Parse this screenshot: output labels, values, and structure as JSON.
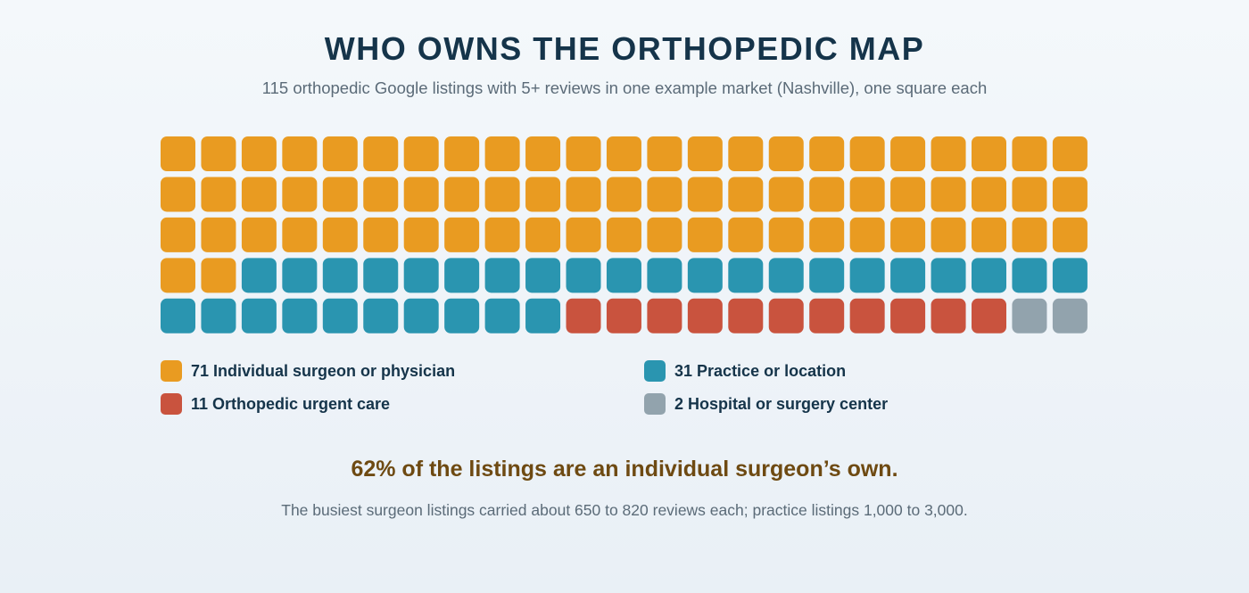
{
  "chart_data": {
    "type": "waffle",
    "title": "WHO OWNS THE ORTHOPEDIC MAP",
    "subtitle": "115 orthopedic Google listings with 5+ reviews in one example market (Nashville), one square each",
    "columns": 23,
    "rows": 5,
    "categories": [
      {
        "name": "Individual surgeon or physician",
        "count": 71,
        "color": "#e99b21"
      },
      {
        "name": "Practice or location",
        "count": 31,
        "color": "#2a95b0"
      },
      {
        "name": "Orthopedic urgent care",
        "count": 11,
        "color": "#c9533e"
      },
      {
        "name": "Hospital or surgery center",
        "count": 2,
        "color": "#92a3ad"
      }
    ],
    "headline": "62% of the listings are an individual surgeon’s own.",
    "footnote": "The busiest surgeon listings carried about 650 to 820 reviews each; practice listings 1,000 to 3,000."
  }
}
